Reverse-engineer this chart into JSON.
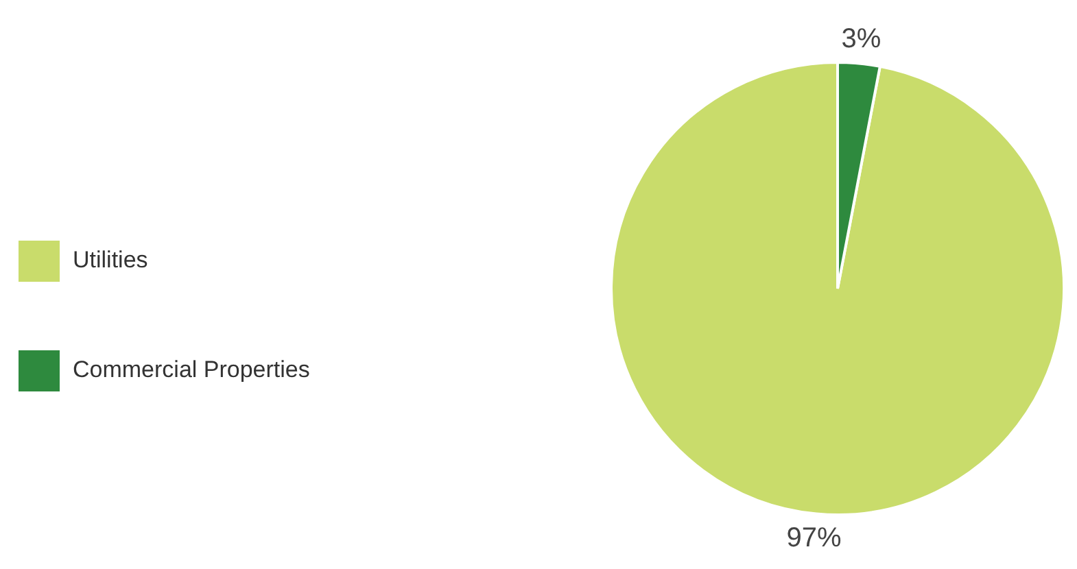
{
  "chart_data": {
    "type": "pie",
    "categories": [
      "Utilities",
      "Commercial Properties"
    ],
    "values": [
      97,
      3
    ],
    "colors": [
      "#c9dc6b",
      "#2e8a3e"
    ],
    "value_labels": [
      "97%",
      "3%"
    ],
    "legend": "left"
  }
}
